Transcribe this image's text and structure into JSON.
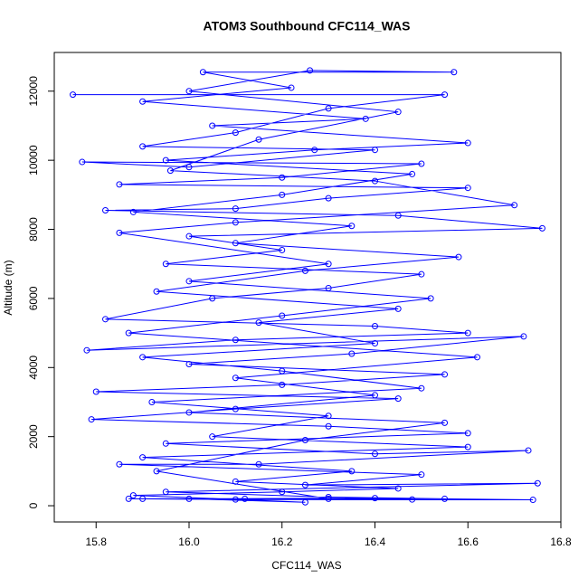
{
  "chart_data": {
    "type": "line",
    "title": "ATOM3 Southbound CFC114_WAS",
    "x_label": "CFC114_WAS",
    "y_label": "Altitude (m)",
    "color": "#0000ff",
    "markers": true,
    "grid": false,
    "xlim": [
      15.71,
      16.8
    ],
    "ylim": [
      -470,
      13120
    ],
    "xticks": [
      15.8,
      {
        "value": 16,
        "label": "16.0"
      },
      16.2,
      16.4,
      16.6,
      16.8
    ],
    "yticks": [
      0,
      2000,
      4000,
      6000,
      8000,
      10000,
      12000
    ],
    "x": [
      15.75,
      16.55,
      16.3,
      16.1,
      15.9,
      16.4,
      16.0,
      15.77,
      16.5,
      16.2,
      15.85,
      16.6,
      16.3,
      16.1,
      15.82,
      16.45,
      16.76,
      16.0,
      16.2,
      15.95,
      16.5,
      16.3,
      16.05,
      15.82,
      16.4,
      16.6,
      16.1,
      15.78,
      16.72,
      16.35,
      16.0,
      16.55,
      16.2,
      15.8,
      16.45,
      16.1,
      15.79,
      16.3,
      16.6,
      15.95,
      16.4,
      16.73,
      16.15,
      15.85,
      16.5,
      16.25,
      16.75,
      15.95,
      16.3,
      16.55,
      15.87,
      16.1,
      16.74,
      16.4,
      16.0,
      16.25,
      15.88,
      16.2,
      16.45,
      16.1,
      16.35,
      15.9,
      16.6,
      16.05,
      16.3,
      15.92,
      16.5,
      16.2,
      15.9,
      16.4,
      16.15,
      16.45,
      15.93,
      16.25,
      16.58,
      16.1,
      16.35,
      15.88,
      16.2,
      16.48,
      15.95,
      16.27,
      16.6,
      16.05,
      16.38,
      15.9,
      16.22,
      16.03,
      16.57,
      16.26,
      16.0,
      16.45,
      16.15,
      15.96,
      16.4,
      16.7,
      16.1,
      15.85,
      16.3,
      16.0,
      16.52,
      16.2,
      15.87,
      16.62,
      16.1,
      16.4,
      16.0,
      16.55,
      16.25,
      15.93,
      16.3,
      16.12,
      15.9,
      16.48
    ],
    "values": [
      11900,
      11900,
      11500,
      10800,
      10400,
      10300,
      9800,
      9950,
      9900,
      9500,
      9300,
      9200,
      8900,
      8600,
      8550,
      8400,
      8030,
      7800,
      7400,
      7000,
      6700,
      6300,
      6000,
      5400,
      5200,
      5000,
      4800,
      4500,
      4900,
      4400,
      4100,
      3800,
      3500,
      3300,
      3100,
      2800,
      2500,
      2300,
      2100,
      1800,
      1500,
      1600,
      1200,
      1200,
      900,
      600,
      650,
      400,
      250,
      200,
      200,
      180,
      170,
      220,
      200,
      100,
      300,
      400,
      500,
      700,
      1000,
      1400,
      1700,
      2000,
      2600,
      3000,
      3400,
      3900,
      4300,
      4700,
      5300,
      5700,
      6200,
      6800,
      7200,
      7600,
      8100,
      8500,
      9000,
      9600,
      10000,
      10300,
      10500,
      11000,
      11200,
      11700,
      12100,
      12550,
      12550,
      12600,
      12000,
      11400,
      10600,
      9700,
      9400,
      8700,
      8200,
      7900,
      7000,
      6500,
      6000,
      5500,
      5000,
      4300,
      3700,
      3200,
      2700,
      2400,
      1900,
      1000,
      200,
      200,
      200,
      180
    ]
  }
}
